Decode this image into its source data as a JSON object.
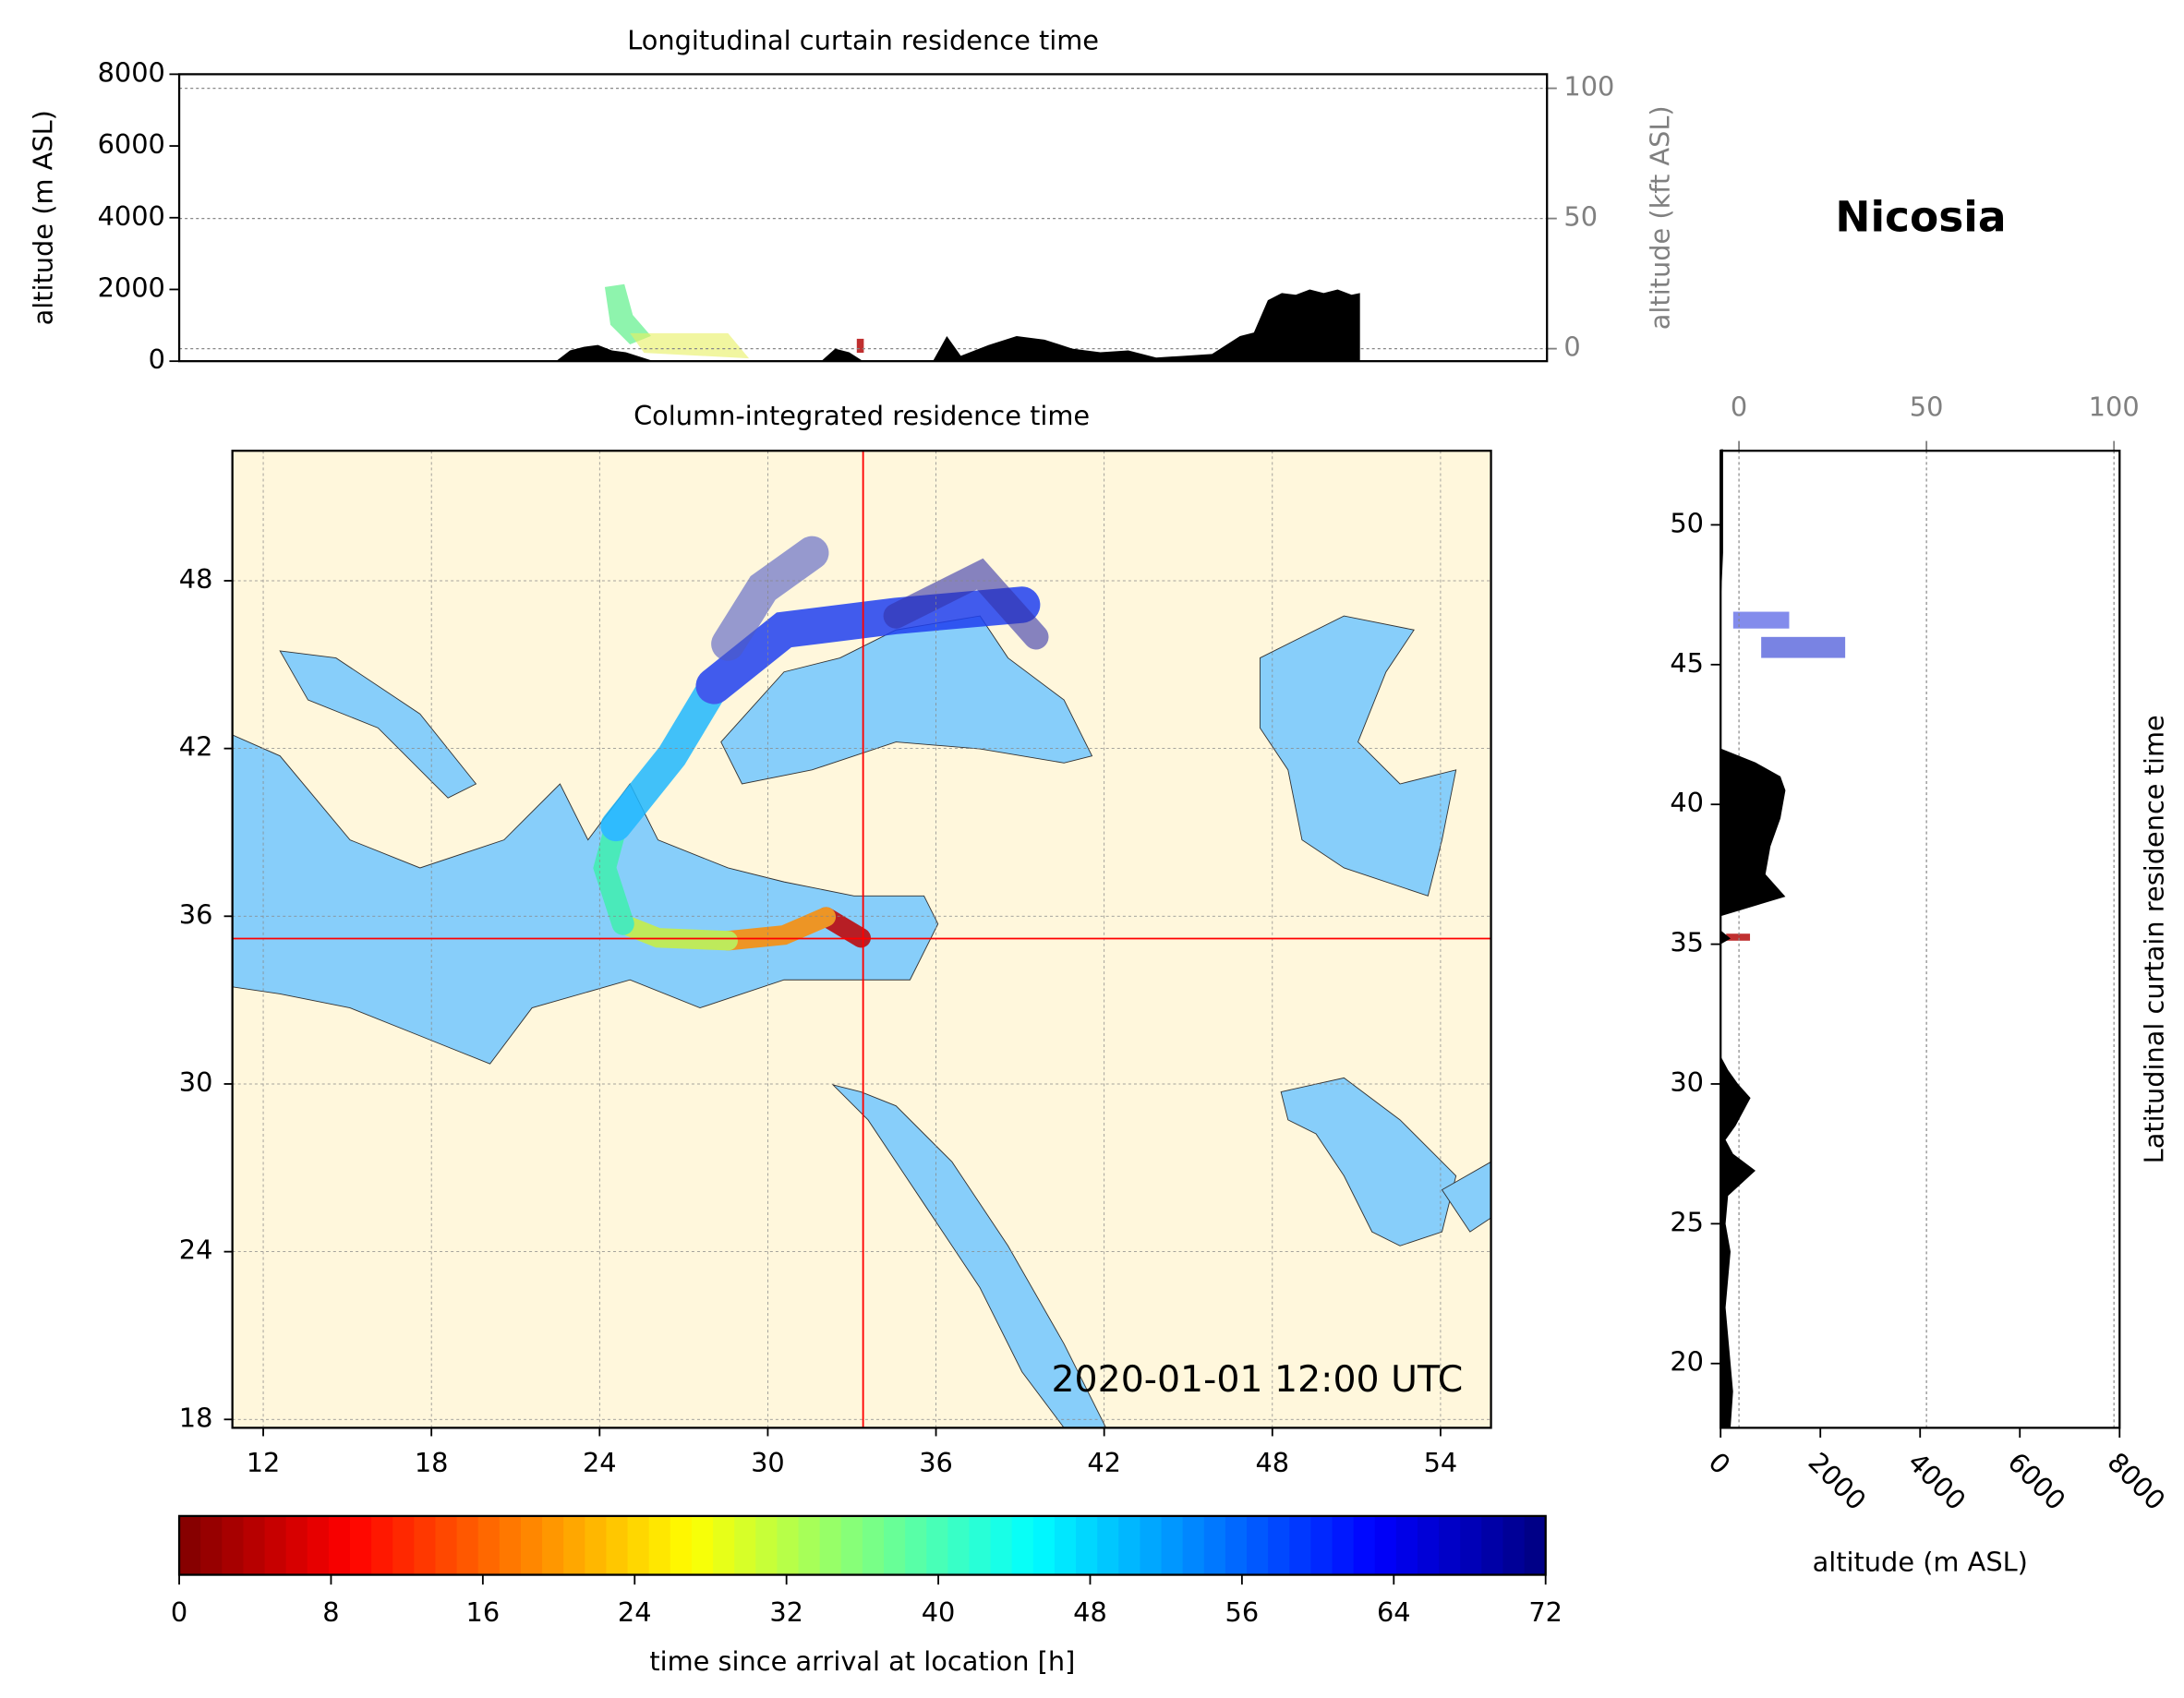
{
  "title": "Nicosia",
  "chart_data": [
    {
      "type": "area",
      "title": "Longitudinal curtain residence time",
      "ylabel": "altitude (m ASL)",
      "y2label": "altitude (kft ASL)",
      "x": [
        22.5,
        23,
        23.5,
        24,
        24.5,
        25,
        26,
        29,
        32,
        32.5,
        33,
        33.5,
        36,
        36.5,
        37,
        38,
        39,
        40,
        41,
        42,
        43,
        44,
        45,
        46,
        47,
        47.5,
        48,
        48.5,
        49,
        49.5,
        50,
        50.5,
        51,
        51.3
      ],
      "series": [
        {
          "color": "#000000",
          "values": [
            0,
            300,
            400,
            450,
            300,
            250,
            0,
            0,
            0,
            350,
            250,
            0,
            0,
            700,
            150,
            450,
            700,
            600,
            350,
            250,
            300,
            100,
            150,
            200,
            700,
            800,
            1700,
            1900,
            1850,
            2000,
            1900,
            2000,
            1850,
            1900
          ]
        }
      ],
      "xlim": [
        9,
        58
      ],
      "ylim": [
        0,
        8000
      ],
      "yticks": [
        0,
        2000,
        4000,
        6000,
        8000
      ],
      "y2lim": [
        -4.8,
        105.4
      ],
      "y2ticks": [
        0,
        50,
        100
      ],
      "grid": true
    },
    {
      "type": "map",
      "title": "Column-integrated residence time",
      "xlim": [
        10.9,
        55.8
      ],
      "ylim": [
        17.7,
        52.65
      ],
      "xticks": [
        12,
        18,
        24,
        30,
        36,
        42,
        48,
        54
      ],
      "yticks": [
        18,
        24,
        30,
        36,
        42,
        48
      ],
      "crosshair": [
        33.4,
        35.2
      ],
      "crosshair_color": "#ff0000",
      "timestamp": "2020-01-01 12:00 UTC",
      "grid": true
    },
    {
      "type": "area",
      "orientation": "horizontal",
      "title": "Latitudinal curtain residence time",
      "xlabel": "altitude (m ASL)",
      "y": [
        17.7,
        19,
        20,
        22,
        24,
        25,
        26,
        26.9,
        27.5,
        28,
        28.5,
        29.5,
        30,
        30.5,
        31,
        35,
        35.2,
        35.5,
        36,
        36.7,
        37.5,
        38.5,
        39.5,
        40.5,
        41,
        41.5,
        42,
        47,
        49,
        50,
        52.7
      ],
      "series": [
        {
          "color": "#000000",
          "values": [
            200,
            250,
            200,
            100,
            200,
            100,
            150,
            700,
            250,
            100,
            300,
            600,
            350,
            150,
            0,
            0,
            200,
            0,
            0,
            1300,
            900,
            1000,
            1200,
            1300,
            1200,
            700,
            0,
            0,
            50,
            50,
            50
          ]
        }
      ],
      "xlim": [
        0,
        8000
      ],
      "xticks": [
        0,
        2000,
        4000,
        6000,
        8000
      ],
      "x2lim": [
        -4.9,
        101.5
      ],
      "x2ticks": [
        0,
        50,
        100
      ],
      "ylim": [
        17.7,
        52.65
      ],
      "yticks": [
        20,
        25,
        30,
        35,
        40,
        45,
        50
      ],
      "grid": true
    },
    {
      "type": "colorbar",
      "label": "time since arrival at location [h]",
      "lim": [
        0,
        72
      ],
      "ticks": [
        0,
        8,
        16,
        24,
        32,
        40,
        48,
        56,
        64,
        72
      ],
      "colormap": "jet_r"
    }
  ]
}
